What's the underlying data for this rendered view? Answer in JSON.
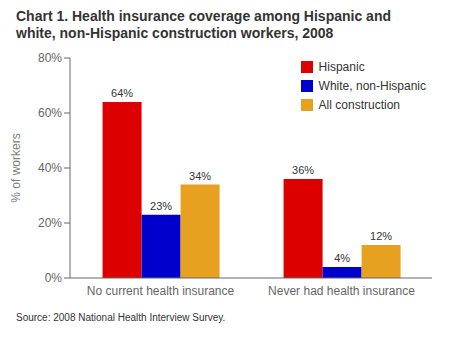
{
  "chart_data": {
    "type": "bar",
    "title": "Chart 1. Health insurance coverage among Hispanic and\nwhite, non-Hispanic construction workers, 2008",
    "categories": [
      "No current health insurance",
      "Never had health insurance"
    ],
    "series": [
      {
        "name": "Hispanic",
        "color": "#dd0000",
        "values": [
          64,
          36
        ],
        "value_labels": [
          "64%",
          "36%"
        ]
      },
      {
        "name": "White, non-Hispanic",
        "color": "#0000cc",
        "values": [
          23,
          4
        ],
        "value_labels": [
          "23%",
          "4%"
        ]
      },
      {
        "name": "All construction",
        "color": "#e8a020",
        "values": [
          34,
          12
        ],
        "value_labels": [
          "34%",
          "12%"
        ]
      }
    ],
    "ylabel": "% of workers",
    "ylim": [
      0,
      80
    ],
    "yticks": [
      {
        "value": 0,
        "label": "0%"
      },
      {
        "value": 20,
        "label": "20%"
      },
      {
        "value": 40,
        "label": "40%"
      },
      {
        "value": 60,
        "label": "60%"
      },
      {
        "value": 80,
        "label": "80%"
      }
    ],
    "grid": false,
    "legend": "upper right",
    "data_labels": true,
    "annotations": [
      "Source: 2008 National Health Interview Survey."
    ]
  }
}
